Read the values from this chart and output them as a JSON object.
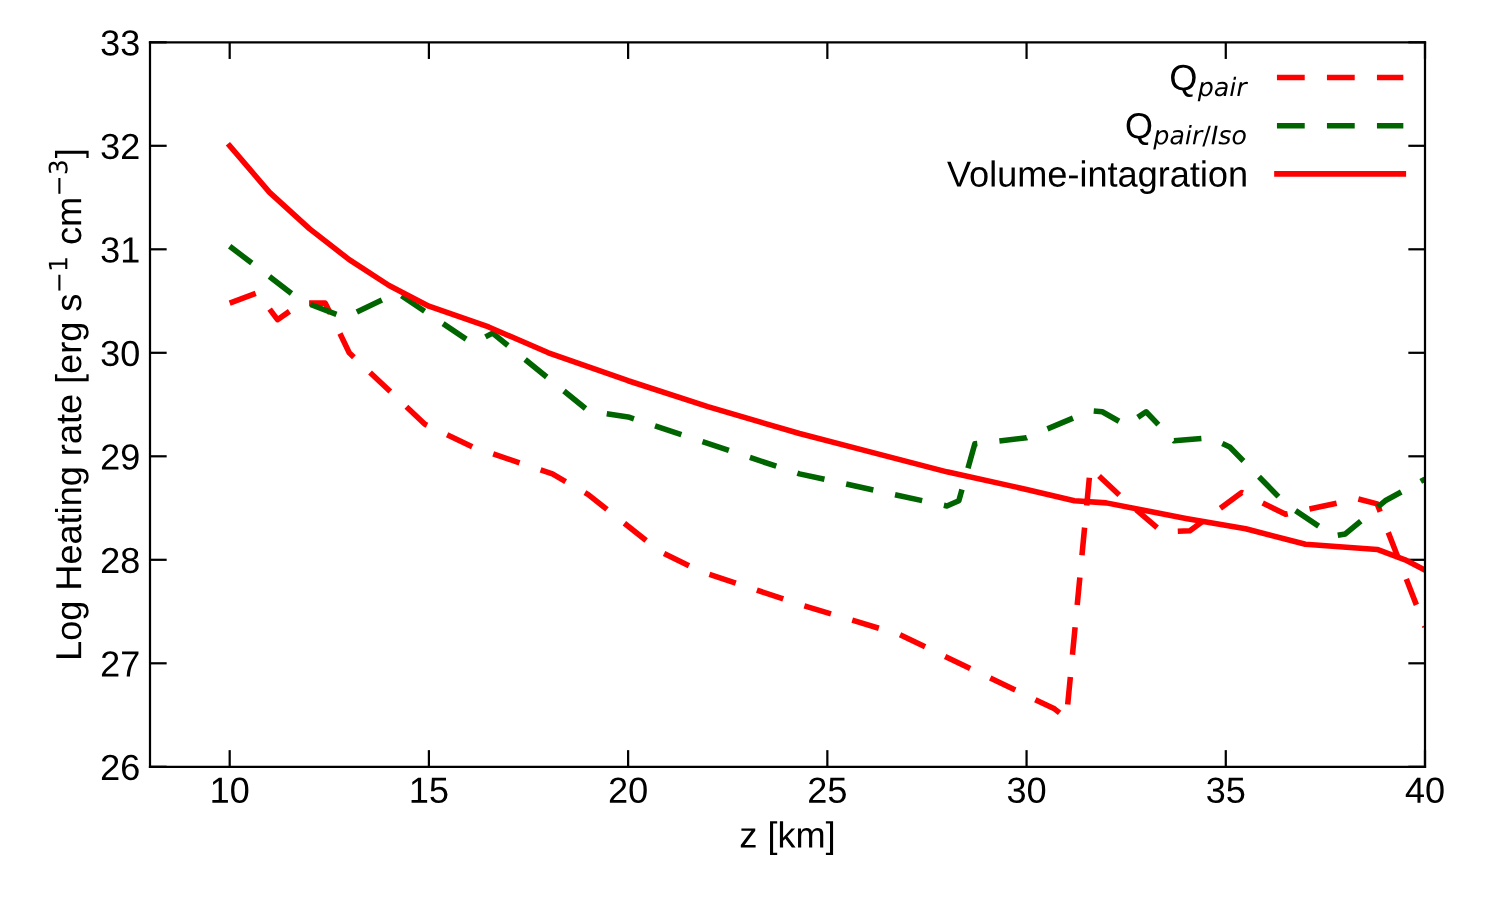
{
  "chart_data": {
    "type": "line",
    "xlabel": "z [km]",
    "ylabel": "Log Heating rate [erg s$^{−1}$ cm$^{−3}$]",
    "xlim": [
      8,
      40
    ],
    "xticks": [
      10,
      15,
      20,
      25,
      30,
      35,
      40
    ],
    "ylim": [
      26,
      33
    ],
    "yticks": [
      26,
      27,
      28,
      29,
      30,
      31,
      32,
      33
    ],
    "grid": false,
    "legend": "top right",
    "series": [
      {
        "name": "Q$_{pair}$",
        "color": "#ff0000",
        "line_style": "dashed",
        "x": [
          10.0,
          10.7,
          11.2,
          11.8,
          12.4,
          13.0,
          14.9,
          16.1,
          18.1,
          19.0,
          20.8,
          21.8,
          24.3,
          26.8,
          30.7,
          31.0,
          31.6,
          32.4,
          33.4,
          34.1,
          35.4,
          36.5,
          38.3,
          38.8,
          40.0
        ],
        "values": [
          30.48,
          30.58,
          30.32,
          30.48,
          30.48,
          30.0,
          29.31,
          29.09,
          28.83,
          28.63,
          28.08,
          27.89,
          27.57,
          27.28,
          26.56,
          26.47,
          28.89,
          28.6,
          28.27,
          28.28,
          28.65,
          28.44,
          28.59,
          28.54,
          27.35
        ]
      },
      {
        "name": "Q$_{pair/Iso}$",
        "color": "#006400",
        "line_style": "dashed",
        "x": [
          10.0,
          11.8,
          12.9,
          14.2,
          16.1,
          16.6,
          19.0,
          20.0,
          24.3,
          28.0,
          28.3,
          28.7,
          30.0,
          31.6,
          31.9,
          32.5,
          33.0,
          33.7,
          34.6,
          35.1,
          36.5,
          37.7,
          38.0,
          39.0,
          40.0
        ],
        "values": [
          31.03,
          30.5,
          30.34,
          30.58,
          30.09,
          30.19,
          29.44,
          29.38,
          28.83,
          28.52,
          28.57,
          29.12,
          29.18,
          29.44,
          29.43,
          29.3,
          29.43,
          29.15,
          29.18,
          29.09,
          28.54,
          28.23,
          28.25,
          28.57,
          28.78
        ]
      },
      {
        "name": "Volume-intagration",
        "color": "#ff0000",
        "line_style": "solid",
        "x": [
          10,
          11,
          12,
          13,
          14,
          15,
          16.5,
          18,
          20,
          22,
          24.3,
          26,
          28,
          30,
          31.2,
          32,
          34,
          35.5,
          37,
          38.8,
          39.5,
          40
        ],
        "values": [
          32.0,
          31.55,
          31.2,
          30.9,
          30.65,
          30.45,
          30.25,
          30.0,
          29.73,
          29.48,
          29.22,
          29.05,
          28.85,
          28.68,
          28.57,
          28.55,
          28.4,
          28.3,
          28.15,
          28.1,
          28.0,
          27.9
        ]
      }
    ]
  }
}
